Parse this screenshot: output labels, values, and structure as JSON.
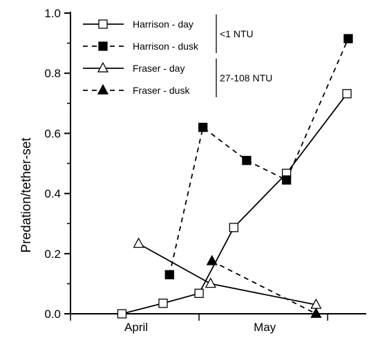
{
  "chart_data": {
    "type": "line",
    "title": "",
    "xlabel": "",
    "ylabel": "Predation/tether-set",
    "ylim": [
      0,
      1.0
    ],
    "yticks": [
      "0.0",
      "0.2",
      "0.4",
      "0.6",
      "0.8",
      "1.0"
    ],
    "xticks": [
      "April",
      "May"
    ],
    "grid": false,
    "legend_position": "top-left",
    "series": [
      {
        "name": "Harrison - day",
        "style": "solid",
        "marker": "open-square",
        "x": [
          0.9,
          1.22,
          1.5,
          1.77,
          2.18,
          2.65
        ],
        "y": [
          0.0,
          0.035,
          0.068,
          0.287,
          0.467,
          0.732
        ]
      },
      {
        "name": "Harrison - dusk",
        "style": "dashed",
        "marker": "filled-square",
        "x": [
          1.27,
          1.53,
          1.87,
          2.18,
          2.66
        ],
        "y": [
          0.13,
          0.62,
          0.51,
          0.445,
          0.915
        ]
      },
      {
        "name": "Fraser - day",
        "style": "solid",
        "marker": "open-triangle",
        "x": [
          1.03,
          1.59,
          2.41
        ],
        "y": [
          0.233,
          0.1,
          0.03
        ]
      },
      {
        "name": "Fraser - dusk",
        "style": "dashed",
        "marker": "filled-triangle",
        "x": [
          1.6,
          2.41
        ],
        "y": [
          0.175,
          0.0
        ]
      }
    ],
    "brackets": [
      {
        "label": "<1 NTU",
        "series": [
          0,
          1
        ]
      },
      {
        "label": "27-108 NTU",
        "series": [
          2,
          3
        ]
      }
    ]
  }
}
